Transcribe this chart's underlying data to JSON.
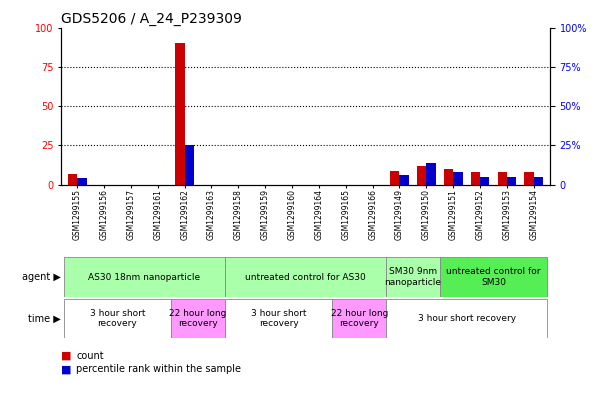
{
  "title": "GDS5206 / A_24_P239309",
  "samples": [
    "GSM1299155",
    "GSM1299156",
    "GSM1299157",
    "GSM1299161",
    "GSM1299162",
    "GSM1299163",
    "GSM1299158",
    "GSM1299159",
    "GSM1299160",
    "GSM1299164",
    "GSM1299165",
    "GSM1299166",
    "GSM1299149",
    "GSM1299150",
    "GSM1299151",
    "GSM1299152",
    "GSM1299153",
    "GSM1299154"
  ],
  "count_values": [
    7,
    0,
    0,
    0,
    90,
    0,
    0,
    0,
    0,
    0,
    0,
    0,
    9,
    12,
    10,
    8,
    8,
    8
  ],
  "percentile_values": [
    4,
    0,
    0,
    0,
    25,
    0,
    0,
    0,
    0,
    0,
    0,
    0,
    6,
    14,
    8,
    5,
    5,
    5
  ],
  "bar_width": 0.35,
  "count_color": "#cc0000",
  "percentile_color": "#0000cc",
  "ylim": [
    0,
    100
  ],
  "yticks": [
    0,
    25,
    50,
    75,
    100
  ],
  "agent_groups": [
    {
      "label": "AS30 18nm nanoparticle",
      "start": 0,
      "end": 5,
      "color": "#aaffaa"
    },
    {
      "label": "untreated control for AS30",
      "start": 6,
      "end": 11,
      "color": "#aaffaa"
    },
    {
      "label": "SM30 9nm\nnanoparticle",
      "start": 12,
      "end": 13,
      "color": "#aaffaa"
    },
    {
      "label": "untreated control for\nSM30",
      "start": 14,
      "end": 17,
      "color": "#55ee55"
    }
  ],
  "time_groups": [
    {
      "label": "3 hour short\nrecovery",
      "start": 0,
      "end": 3,
      "color": "#ffffff"
    },
    {
      "label": "22 hour long\nrecovery",
      "start": 4,
      "end": 5,
      "color": "#ff99ff"
    },
    {
      "label": "3 hour short\nrecovery",
      "start": 6,
      "end": 9,
      "color": "#ffffff"
    },
    {
      "label": "22 hour long\nrecovery",
      "start": 10,
      "end": 11,
      "color": "#ff99ff"
    },
    {
      "label": "3 hour short recovery",
      "start": 12,
      "end": 17,
      "color": "#ffffff"
    }
  ],
  "legend_count_label": "count",
  "legend_percentile_label": "percentile rank within the sample",
  "agent_label": "agent",
  "time_label": "time",
  "title_fontsize": 10,
  "tick_fontsize": 7,
  "sample_fontsize": 5.5,
  "row_fontsize": 6.5
}
